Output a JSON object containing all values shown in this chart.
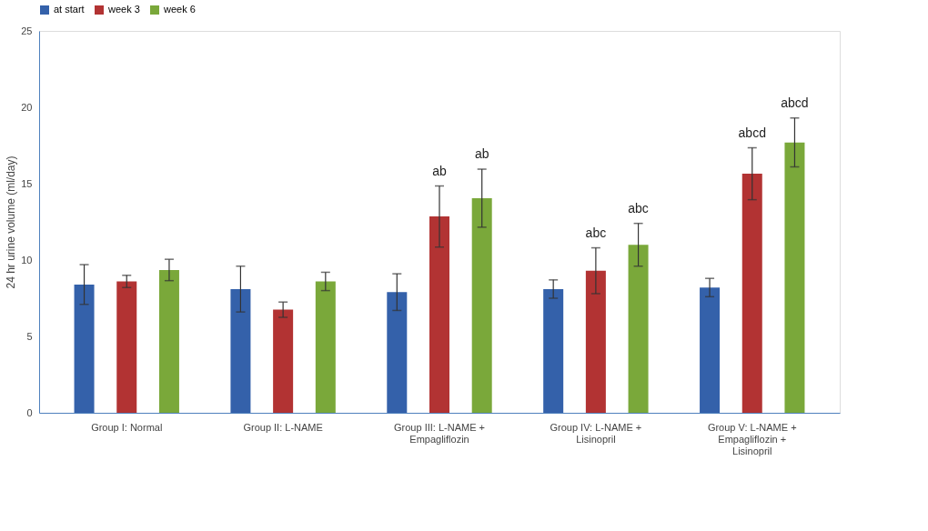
{
  "chart_data": {
    "type": "bar",
    "ylabel": "24 hr urine volume (ml/day)",
    "categories": [
      "Group I: Normal",
      "Group II: L-NAME",
      "Group III: L-NAME +\nEmpagliflozin",
      "Group IV: L-NAME +\nLisinopril",
      "Group V: L-NAME +\nEmpagliflozin +\nLisinopril"
    ],
    "series": [
      {
        "name": "at start",
        "color": "#3461aa",
        "values": [
          8.4,
          8.1,
          7.9,
          8.1,
          8.2
        ],
        "errors": [
          1.3,
          1.5,
          1.2,
          0.6,
          0.6
        ]
      },
      {
        "name": "week 3",
        "color": "#b23333",
        "values": [
          8.6,
          6.75,
          12.85,
          9.3,
          15.65
        ],
        "errors": [
          0.4,
          0.5,
          2.0,
          1.5,
          1.7
        ],
        "value_labels": [
          null,
          null,
          "ab",
          "abc",
          "abcd"
        ]
      },
      {
        "name": "week 6",
        "color": "#7aa83a",
        "values": [
          9.35,
          8.6,
          14.05,
          11.0,
          17.7
        ],
        "errors": [
          0.7,
          0.6,
          1.9,
          1.4,
          1.6
        ],
        "value_labels": [
          null,
          null,
          "ab",
          "abc",
          "abcd"
        ]
      }
    ],
    "ylim": [
      0,
      25
    ],
    "yticks": [
      0,
      5,
      10,
      15,
      20,
      25
    ],
    "grid": false,
    "legend": "top"
  }
}
